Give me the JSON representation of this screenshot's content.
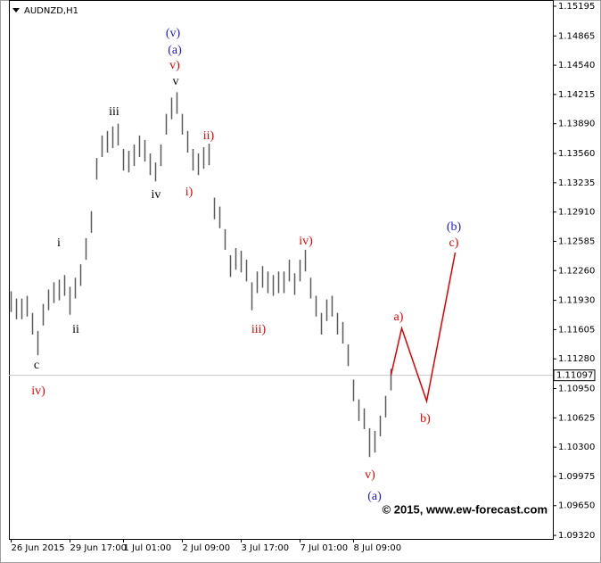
{
  "chart_data": {
    "type": "ohlc",
    "title": "AUDNZD,H1",
    "watermark": "© 2015, www.ew-forecast.com",
    "color": "#5a5a5a",
    "current_price": 1.11097,
    "categories": [
      "26 Jun 2015",
      null,
      null,
      null,
      null,
      null,
      null,
      null,
      null,
      null,
      null,
      "29 Jun 17:00",
      null,
      null,
      null,
      null,
      null,
      null,
      null,
      null,
      null,
      "1 Jul 01:00",
      null,
      null,
      null,
      null,
      null,
      null,
      null,
      null,
      null,
      null,
      "2 Jul 09:00",
      null,
      null,
      null,
      null,
      null,
      null,
      null,
      null,
      null,
      null,
      "3 Jul 17:00",
      null,
      null,
      null,
      null,
      null,
      null,
      null,
      null,
      null,
      null,
      "7 Jul 01:00",
      null,
      null,
      null,
      null,
      null,
      null,
      null,
      null,
      null,
      "8 Jul 09:00",
      null,
      null,
      null,
      null,
      null,
      null,
      null
    ],
    "high": [
      1.1203,
      1.1195,
      1.1195,
      1.1198,
      1.1179,
      1.1159,
      1.1189,
      1.1205,
      1.1213,
      1.1216,
      1.1221,
      1.1208,
      1.1218,
      1.1233,
      1.1262,
      1.1292,
      1.1351,
      1.1376,
      1.1381,
      1.1386,
      1.1389,
      1.1361,
      1.1359,
      1.1366,
      1.1376,
      1.1371,
      1.1356,
      1.1346,
      1.1366,
      1.14,
      1.1418,
      1.1424,
      1.14,
      1.1381,
      1.1361,
      1.1356,
      1.1363,
      1.1367,
      1.1307,
      1.1297,
      1.1272,
      1.1243,
      1.1251,
      1.1248,
      1.1238,
      1.1213,
      1.1225,
      1.1231,
      1.1225,
      1.1221,
      1.1225,
      1.1225,
      1.1238,
      1.1223,
      1.1238,
      1.1249,
      1.1218,
      1.1198,
      1.1179,
      1.1194,
      1.1198,
      1.1179,
      1.1169,
      1.1144,
      1.1105,
      1.1083,
      1.1073,
      1.1051,
      1.1048,
      1.1065,
      1.1087,
      1.1117
    ],
    "low": [
      1.118,
      1.1172,
      1.1172,
      1.1175,
      1.1155,
      1.1132,
      1.1165,
      1.1182,
      1.119,
      1.1193,
      1.1198,
      1.1177,
      1.1195,
      1.1209,
      1.1238,
      1.1268,
      1.1327,
      1.1352,
      1.1357,
      1.1362,
      1.1365,
      1.1337,
      1.1335,
      1.1342,
      1.1352,
      1.1347,
      1.1332,
      1.1325,
      1.1342,
      1.1377,
      1.1394,
      1.14,
      1.1377,
      1.1357,
      1.1337,
      1.1332,
      1.1339,
      1.1343,
      1.1283,
      1.1273,
      1.1249,
      1.1219,
      1.1227,
      1.1224,
      1.1214,
      1.1182,
      1.1201,
      1.1207,
      1.1201,
      1.1198,
      1.1201,
      1.1201,
      1.1214,
      1.1199,
      1.1214,
      1.1225,
      1.1195,
      1.1175,
      1.1155,
      1.117,
      1.1175,
      1.1155,
      1.1145,
      1.112,
      1.1081,
      1.1059,
      1.105,
      1.1019,
      1.1024,
      1.1042,
      1.1063,
      1.1093
    ],
    "projection": {
      "color": "#e00000",
      "values": [
        1.111,
        1.1162,
        1.1081,
        1.1246
      ]
    },
    "ylim": [
      1.09281,
      1.15264
    ],
    "yticks": [
      1.15195,
      1.14865,
      {
        "value": 1.1454,
        "label": "1.14540"
      },
      1.14215,
      {
        "value": 1.1389,
        "label": "1.13890"
      },
      {
        "value": 1.1356,
        "label": "1.13560"
      },
      1.13235,
      {
        "value": 1.1291,
        "label": "1.12910"
      },
      1.12585,
      {
        "value": 1.1226,
        "label": "1.12260"
      },
      {
        "value": 1.1193,
        "label": "1.11930"
      },
      1.11605,
      {
        "value": 1.1128,
        "label": "1.11280"
      },
      {
        "value": 1.1095,
        "label": "1.10950"
      },
      1.10625,
      {
        "value": 1.103,
        "label": "1.10300"
      },
      1.09975,
      {
        "value": 1.0965,
        "label": "1.09650"
      },
      {
        "value": 1.0932,
        "label": "1.09320"
      }
    ],
    "annotations": [
      {
        "text": "(v)",
        "color": "#1a1acc"
      },
      {
        "text": "(a)",
        "color": "#1a1acc"
      },
      {
        "text": "v)",
        "color": "#e00000"
      },
      {
        "text": "v",
        "color": "#000000"
      },
      {
        "text": "iii",
        "color": "#000000"
      },
      {
        "text": "ii)",
        "color": "#e00000"
      },
      {
        "text": "i)",
        "color": "#e00000"
      },
      {
        "text": "iv",
        "color": "#000000"
      },
      {
        "text": "i",
        "color": "#000000"
      },
      {
        "text": "ii",
        "color": "#000000"
      },
      {
        "text": "c",
        "color": "#000000"
      },
      {
        "text": "iv)",
        "color": "#e00000"
      },
      {
        "text": "iv)",
        "color": "#e00000"
      },
      {
        "text": "iii)",
        "color": "#e00000"
      },
      {
        "text": "a)",
        "color": "#e00000"
      },
      {
        "text": "b)",
        "color": "#e00000"
      },
      {
        "text": "(b)",
        "color": "#1a1acc"
      },
      {
        "text": "c)",
        "color": "#e00000"
      },
      {
        "text": "v)",
        "color": "#e00000"
      },
      {
        "text": "(a)",
        "color": "#1a1acc"
      }
    ]
  }
}
